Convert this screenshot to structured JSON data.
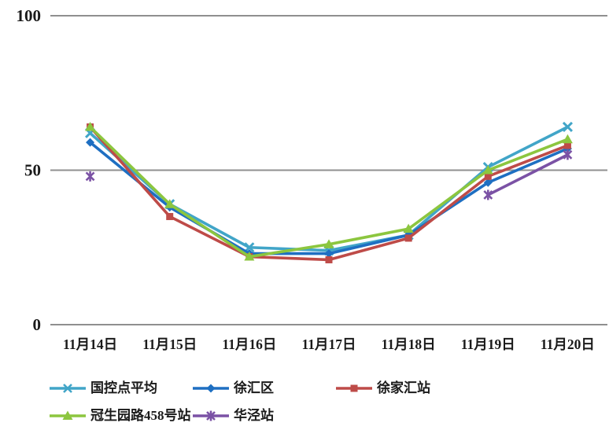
{
  "chart_data": {
    "type": "line",
    "title": "",
    "xlabel": "",
    "ylabel": "",
    "ylim": [
      0,
      100
    ],
    "yticks": [
      0,
      50,
      100
    ],
    "grid": "horizontal",
    "legend_position": "bottom",
    "categories": [
      "11月14日",
      "11月15日",
      "11月16日",
      "11月17日",
      "11月18日",
      "11月19日",
      "11月20日"
    ],
    "series": [
      {
        "name": "国控点平均",
        "color": "#41A5C8",
        "marker": "x",
        "values": [
          62,
          39,
          25,
          24,
          29,
          51,
          64
        ]
      },
      {
        "name": "徐汇区",
        "color": "#1E6FC2",
        "marker": "diamond",
        "values": [
          59,
          38,
          23,
          23,
          29,
          46,
          57
        ]
      },
      {
        "name": "徐家汇站",
        "color": "#BE4B48",
        "marker": "square",
        "values": [
          64,
          35,
          22,
          21,
          28,
          48,
          58
        ]
      },
      {
        "name": "冠生园路458号站",
        "color": "#8CC63F",
        "marker": "triangle",
        "values": [
          64,
          39,
          22,
          26,
          31,
          50,
          60
        ]
      },
      {
        "name": "华泾站",
        "color": "#7B52A5",
        "marker": "asterisk",
        "values": [
          48,
          null,
          null,
          null,
          null,
          42,
          55
        ]
      }
    ]
  },
  "style": {
    "grid_color": "#8f8f8f",
    "text_color": "#1a1a1a"
  }
}
